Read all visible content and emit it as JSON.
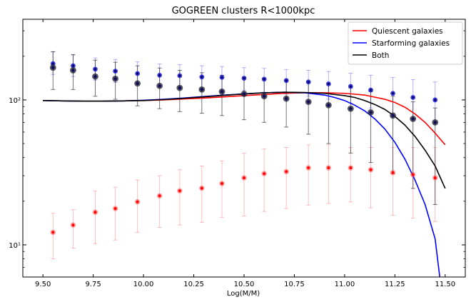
{
  "chart_data": {
    "type": "line",
    "title": "GOGREEN clusters R<1000kpc",
    "xlabel": "Log(M/M)",
    "ylabel": "",
    "xlim": [
      9.4,
      11.6
    ],
    "ylim": [
      6,
      360
    ],
    "yscale": "log",
    "x_ticks": [
      "9.50",
      "9.75",
      "10.00",
      "10.25",
      "10.50",
      "10.75",
      "11.00",
      "11.25",
      "11.50"
    ],
    "x_tick_values": [
      9.5,
      9.75,
      10.0,
      10.25,
      10.5,
      10.75,
      11.0,
      11.25,
      11.5
    ],
    "y_ticks": [
      "10¹",
      "10²"
    ],
    "y_tick_values": [
      10,
      100
    ],
    "legend_position": "top-right",
    "grid": false,
    "series": [
      {
        "name": "Quiescent galaxies",
        "kind": "line",
        "color": "#ff0000",
        "x": [
          9.5,
          9.6,
          9.7,
          9.8,
          9.9,
          10.0,
          10.1,
          10.2,
          10.3,
          10.4,
          10.5,
          10.6,
          10.7,
          10.8,
          10.9,
          11.0,
          11.1,
          11.2,
          11.25,
          11.3,
          11.35,
          11.4,
          11.45,
          11.5
        ],
        "y": [
          99,
          98.5,
          98,
          98,
          98.5,
          99,
          100,
          101.5,
          103,
          105,
          107,
          109,
          111,
          112,
          112,
          111,
          108,
          101,
          96,
          89,
          80,
          70,
          59,
          49
        ]
      },
      {
        "name": "Starforming galaxies",
        "kind": "line",
        "color": "#0000ff",
        "x": [
          9.5,
          9.6,
          9.7,
          9.8,
          9.9,
          10.0,
          10.1,
          10.2,
          10.3,
          10.4,
          10.5,
          10.6,
          10.7,
          10.8,
          10.9,
          10.95,
          11.0,
          11.05,
          11.1,
          11.15,
          11.2,
          11.25,
          11.3,
          11.35,
          11.4,
          11.45,
          11.48
        ],
        "y": [
          99,
          98.5,
          98,
          98,
          98.5,
          99.5,
          101,
          103,
          105.5,
          108,
          110,
          112,
          113,
          112,
          108,
          104,
          99,
          92,
          84,
          74,
          63,
          51,
          39,
          28,
          19,
          11,
          5
        ]
      },
      {
        "name": "Both",
        "kind": "line",
        "color": "#000000",
        "x": [
          9.5,
          9.6,
          9.7,
          9.8,
          9.9,
          10.0,
          10.1,
          10.2,
          10.3,
          10.4,
          10.5,
          10.6,
          10.7,
          10.8,
          10.9,
          11.0,
          11.05,
          11.1,
          11.15,
          11.2,
          11.25,
          11.3,
          11.35,
          11.4,
          11.45,
          11.5
        ],
        "y": [
          99,
          98.5,
          98,
          98,
          98.5,
          99,
          100.5,
          102.5,
          105,
          107.5,
          110,
          112,
          113,
          112.5,
          111,
          107,
          104,
          99,
          93,
          86,
          77,
          67,
          56,
          45,
          35,
          24.5
        ]
      },
      {
        "name": "",
        "kind": "points",
        "color": "#ff0000",
        "x": [
          9.55,
          9.65,
          9.76,
          9.86,
          9.97,
          10.08,
          10.18,
          10.29,
          10.39,
          10.5,
          10.6,
          10.71,
          10.82,
          10.92,
          11.03,
          11.13,
          11.24,
          11.34,
          11.45
        ],
        "y": [
          12.2,
          13.7,
          16.8,
          17.8,
          19.8,
          21.8,
          23.6,
          24.6,
          26.5,
          29,
          31,
          32,
          34,
          34,
          34,
          33,
          31.5,
          30.5,
          29
        ],
        "yerr_low": [
          8,
          9.5,
          10.2,
          10.8,
          12.2,
          13.2,
          13.7,
          14.3,
          15.5,
          15.8,
          17,
          17.8,
          18.8,
          19.3,
          19.8,
          18,
          16,
          15.3,
          14.5
        ],
        "yerr_high": [
          16.5,
          17.5,
          23.5,
          25,
          28,
          30,
          33,
          35,
          38,
          43,
          46,
          47,
          49,
          49,
          47,
          47,
          47,
          47,
          47
        ]
      },
      {
        "name": "",
        "kind": "points",
        "color": "#0000ff",
        "x": [
          9.55,
          9.65,
          9.76,
          9.86,
          9.97,
          10.08,
          10.18,
          10.29,
          10.39,
          10.5,
          10.6,
          10.71,
          10.82,
          10.92,
          11.03,
          11.13,
          11.24,
          11.34,
          11.45
        ],
        "y": [
          178,
          172,
          163,
          158,
          152,
          148,
          147,
          144,
          143,
          141,
          139,
          136,
          133,
          129,
          124,
          117,
          111,
          104,
          100
        ],
        "yerr_low": [
          150,
          145,
          137,
          132,
          127,
          123,
          122,
          119,
          118,
          116,
          113,
          110,
          106,
          101,
          95,
          88,
          81,
          74,
          68
        ],
        "yerr_high": [
          215,
          205,
          195,
          190,
          183,
          177,
          175,
          172,
          170,
          167,
          165,
          162,
          160,
          157,
          153,
          148,
          143,
          138,
          133
        ]
      },
      {
        "name": "",
        "kind": "points",
        "color": "#000000",
        "x": [
          9.55,
          9.65,
          9.76,
          9.86,
          9.97,
          10.08,
          10.18,
          10.29,
          10.39,
          10.5,
          10.6,
          10.71,
          10.82,
          10.92,
          11.03,
          11.13,
          11.24,
          11.34,
          11.45
        ],
        "y": [
          167,
          160,
          145,
          140,
          130,
          125,
          121,
          118,
          114,
          110,
          106,
          102,
          97,
          92,
          87,
          82,
          78,
          74,
          70
        ],
        "yerr_low": [
          118,
          118,
          106,
          101,
          91,
          87,
          83,
          81,
          78,
          73,
          70,
          65,
          58,
          50,
          43,
          37,
          31,
          24.5,
          19
        ],
        "yerr_high": [
          215,
          205,
          188,
          182,
          172,
          166,
          160,
          154,
          148,
          144,
          140,
          137,
          132,
          127,
          121,
          114,
          106,
          97,
          88
        ]
      }
    ]
  }
}
